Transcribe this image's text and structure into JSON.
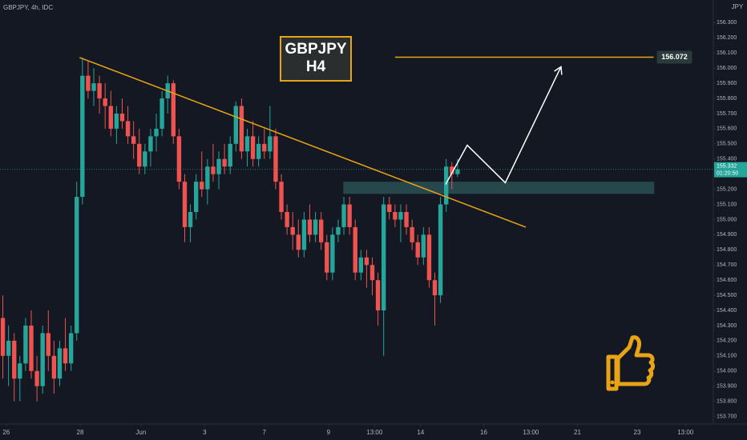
{
  "chart_data": {
    "type": "candlestick",
    "title": "GBPJPY, 4h, IDC",
    "currency": "JPY",
    "label_box": [
      "GBPJPY",
      "H4"
    ],
    "up_color": "#26a69a",
    "down_color": "#ef5350",
    "grid": false,
    "ylim": [
      153.65,
      156.45
    ],
    "xlim": [
      -0.5,
      125
    ],
    "yticks": [
      {
        "value": 153.7,
        "label": "153.700"
      },
      {
        "value": 153.8,
        "label": "153.800"
      },
      {
        "value": 153.9,
        "label": "153.900"
      },
      {
        "value": 154.0,
        "label": "154.000"
      },
      {
        "value": 154.1,
        "label": "154.100"
      },
      {
        "value": 154.2,
        "label": "154.200"
      },
      {
        "value": 154.3,
        "label": "154.300"
      },
      {
        "value": 154.4,
        "label": "154.400"
      },
      {
        "value": 154.5,
        "label": "154.500"
      },
      {
        "value": 154.6,
        "label": "154.600"
      },
      {
        "value": 154.7,
        "label": "154.700"
      },
      {
        "value": 154.8,
        "label": "154.800"
      },
      {
        "value": 154.9,
        "label": "154.900"
      },
      {
        "value": 155.0,
        "label": "155.000"
      },
      {
        "value": 155.1,
        "label": "155.100"
      },
      {
        "value": 155.2,
        "label": "155.200"
      },
      {
        "value": 155.3,
        "label": "155.300"
      },
      {
        "value": 155.4,
        "label": "155.400"
      },
      {
        "value": 155.5,
        "label": "155.500"
      },
      {
        "value": 155.6,
        "label": "155.600"
      },
      {
        "value": 155.7,
        "label": "155.700"
      },
      {
        "value": 155.8,
        "label": "155.800"
      },
      {
        "value": 155.9,
        "label": "155.900"
      },
      {
        "value": 156.0,
        "label": "156.000"
      },
      {
        "value": 156.1,
        "label": "156.100"
      },
      {
        "value": 156.2,
        "label": "156.200"
      },
      {
        "value": 156.3,
        "label": "156.300"
      }
    ],
    "xticks": [
      {
        "value": 0.6,
        "label": "26"
      },
      {
        "value": 13.6,
        "label": "28"
      },
      {
        "value": 24.3,
        "label": "Jun"
      },
      {
        "value": 35.5,
        "label": "3"
      },
      {
        "value": 46.0,
        "label": "7"
      },
      {
        "value": 57.3,
        "label": "9"
      },
      {
        "value": 65.4,
        "label": "13:00"
      },
      {
        "value": 73.5,
        "label": "14"
      },
      {
        "value": 84.6,
        "label": "16"
      },
      {
        "value": 92.9,
        "label": "13:00"
      },
      {
        "value": 101.1,
        "label": "21"
      },
      {
        "value": 111.6,
        "label": "23"
      },
      {
        "value": 120.1,
        "label": "13:00"
      }
    ],
    "ohlc": [
      [
        154.35,
        154.5,
        153.95,
        154.1
      ],
      [
        154.1,
        154.3,
        153.9,
        154.2
      ],
      [
        154.2,
        154.25,
        153.8,
        153.95
      ],
      [
        153.95,
        154.1,
        153.8,
        154.05
      ],
      [
        154.05,
        154.35,
        154.0,
        154.3
      ],
      [
        154.3,
        154.4,
        153.95,
        154.0
      ],
      [
        154.0,
        154.1,
        153.8,
        153.9
      ],
      [
        153.9,
        154.3,
        153.85,
        154.25
      ],
      [
        154.25,
        154.4,
        154.0,
        154.1
      ],
      [
        154.1,
        154.2,
        153.85,
        153.95
      ],
      [
        153.95,
        154.2,
        153.9,
        154.15
      ],
      [
        154.15,
        154.35,
        154.0,
        154.05
      ],
      [
        154.05,
        154.3,
        154.0,
        154.25
      ],
      [
        154.25,
        155.25,
        154.2,
        155.15
      ],
      [
        155.15,
        156.07,
        155.1,
        155.95
      ],
      [
        155.95,
        156.05,
        155.8,
        155.85
      ],
      [
        155.85,
        156.0,
        155.75,
        155.9
      ],
      [
        155.9,
        155.95,
        155.7,
        155.8
      ],
      [
        155.8,
        155.9,
        155.6,
        155.75
      ],
      [
        155.75,
        155.85,
        155.55,
        155.6
      ],
      [
        155.6,
        155.75,
        155.5,
        155.7
      ],
      [
        155.7,
        155.8,
        155.6,
        155.65
      ],
      [
        155.65,
        155.75,
        155.5,
        155.55
      ],
      [
        155.55,
        155.65,
        155.4,
        155.5
      ],
      [
        155.5,
        155.6,
        155.3,
        155.35
      ],
      [
        155.35,
        155.5,
        155.3,
        155.45
      ],
      [
        155.45,
        155.6,
        155.35,
        155.55
      ],
      [
        155.55,
        155.7,
        155.45,
        155.6
      ],
      [
        155.6,
        155.85,
        155.55,
        155.8
      ],
      [
        155.8,
        155.95,
        155.7,
        155.9
      ],
      [
        155.9,
        155.92,
        155.5,
        155.55
      ],
      [
        155.55,
        155.6,
        155.2,
        155.25
      ],
      [
        155.25,
        155.3,
        154.85,
        154.95
      ],
      [
        154.95,
        155.1,
        154.85,
        155.05
      ],
      [
        155.05,
        155.3,
        155.0,
        155.25
      ],
      [
        155.25,
        155.45,
        155.15,
        155.2
      ],
      [
        155.2,
        155.4,
        155.1,
        155.35
      ],
      [
        155.35,
        155.5,
        155.25,
        155.3
      ],
      [
        155.3,
        155.45,
        155.2,
        155.4
      ],
      [
        155.4,
        155.5,
        155.3,
        155.35
      ],
      [
        155.35,
        155.55,
        155.3,
        155.5
      ],
      [
        155.5,
        155.78,
        155.45,
        155.75
      ],
      [
        155.75,
        155.8,
        155.4,
        155.45
      ],
      [
        155.45,
        155.6,
        155.35,
        155.55
      ],
      [
        155.55,
        155.65,
        155.35,
        155.4
      ],
      [
        155.4,
        155.55,
        155.35,
        155.5
      ],
      [
        155.5,
        155.6,
        155.4,
        155.45
      ],
      [
        155.45,
        155.75,
        155.4,
        155.55
      ],
      [
        155.55,
        155.6,
        155.2,
        155.25
      ],
      [
        155.25,
        155.3,
        155.0,
        155.05
      ],
      [
        155.05,
        155.1,
        154.9,
        154.95
      ],
      [
        154.95,
        155.05,
        154.8,
        154.9
      ],
      [
        154.9,
        155.0,
        154.75,
        154.8
      ],
      [
        154.8,
        155.05,
        154.75,
        155.0
      ],
      [
        155.0,
        155.1,
        154.85,
        154.9
      ],
      [
        154.9,
        155.05,
        154.85,
        155.0
      ],
      [
        155.0,
        155.05,
        154.8,
        154.85
      ],
      [
        154.85,
        154.9,
        154.6,
        154.65
      ],
      [
        154.65,
        154.95,
        154.6,
        154.9
      ],
      [
        154.9,
        155.0,
        154.85,
        154.95
      ],
      [
        154.95,
        155.15,
        154.9,
        155.1
      ],
      [
        155.1,
        155.15,
        154.9,
        154.95
      ],
      [
        154.95,
        155.0,
        154.6,
        154.65
      ],
      [
        154.65,
        154.8,
        154.6,
        154.75
      ],
      [
        154.75,
        154.8,
        154.55,
        154.7
      ],
      [
        154.7,
        154.75,
        154.5,
        154.6
      ],
      [
        154.6,
        154.65,
        154.3,
        154.4
      ],
      [
        154.4,
        155.15,
        154.1,
        155.1
      ],
      [
        155.1,
        155.15,
        155.0,
        155.05
      ],
      [
        155.05,
        155.1,
        154.95,
        155.0
      ],
      [
        155.0,
        155.1,
        154.85,
        155.05
      ],
      [
        155.05,
        155.1,
        154.9,
        154.95
      ],
      [
        154.95,
        155.0,
        154.8,
        154.85
      ],
      [
        154.85,
        154.9,
        154.7,
        154.75
      ],
      [
        154.75,
        154.95,
        154.7,
        154.9
      ],
      [
        154.9,
        154.95,
        154.55,
        154.6
      ],
      [
        154.6,
        154.65,
        154.3,
        154.5
      ],
      [
        154.5,
        155.15,
        154.45,
        155.1
      ],
      [
        155.1,
        155.4,
        155.05,
        155.35
      ],
      [
        155.35,
        155.38,
        155.2,
        155.3
      ],
      [
        155.3,
        155.4,
        155.28,
        155.332
      ]
    ],
    "current_price": {
      "value": 155.332,
      "countdown": "01:20:50"
    },
    "target": {
      "value": 156.072,
      "x": [
        69,
        114.5
      ]
    },
    "trendline": {
      "x": [
        13.5,
        92
      ],
      "y": [
        156.07,
        154.95
      ]
    },
    "zone": {
      "x": [
        59.9,
        114.6
      ],
      "y": [
        155.17,
        155.25
      ]
    },
    "projection": {
      "x": [
        77.9,
        81.7,
        88.4,
        98.2
      ],
      "y": [
        155.232,
        155.491,
        155.243,
        156.009
      ]
    }
  }
}
